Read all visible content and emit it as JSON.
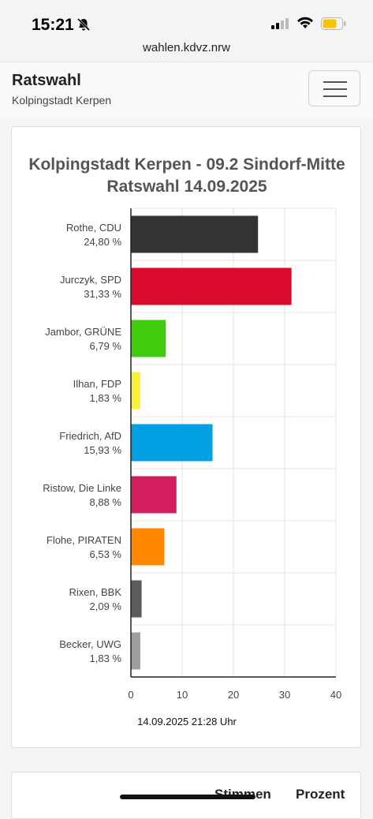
{
  "status": {
    "time": "15:21",
    "url": "wahlen.kdvz.nrw"
  },
  "nav": {
    "title": "Ratswahl",
    "subtitle": "Kolpingstadt Kerpen"
  },
  "table": {
    "col_stimmen": "Stimmen",
    "col_prozent": "Prozent"
  },
  "colors": {
    "accent_battery": "#f5c400"
  },
  "chart_data": {
    "type": "bar",
    "orientation": "horizontal",
    "title_line1": "Kolpingstadt Kerpen - 09.2 Sindorf-Mitte",
    "title_line2": "Ratswahl 14.09.2025",
    "timestamp": "14.09.2025 21:28 Uhr",
    "xlim": [
      0,
      40
    ],
    "xticks": [
      0,
      10,
      20,
      30,
      40
    ],
    "grid": true,
    "bars": [
      {
        "name": "Rothe, CDU",
        "label": "24,80 %",
        "value": 24.8,
        "color": "#333333"
      },
      {
        "name": "Jurczyk, SPD",
        "label": "31,33 %",
        "value": 31.33,
        "color": "#d90a2c"
      },
      {
        "name": "Jambor, GRÜNE",
        "label": "6,79 %",
        "value": 6.79,
        "color": "#3ecc0c"
      },
      {
        "name": "Ilhan, FDP",
        "label": "1,83 %",
        "value": 1.83,
        "color": "#fbef3c"
      },
      {
        "name": "Friedrich, AfD",
        "label": "15,93 %",
        "value": 15.93,
        "color": "#00a0e3"
      },
      {
        "name": "Ristow, Die Linke",
        "label": "8,88 %",
        "value": 8.88,
        "color": "#d21e5f"
      },
      {
        "name": "Flohe, PIRATEN",
        "label": "6,53 %",
        "value": 6.53,
        "color": "#ff8800"
      },
      {
        "name": "Rixen, BBK",
        "label": "2,09 %",
        "value": 2.09,
        "color": "#5c5c5c"
      },
      {
        "name": "Becker, UWG",
        "label": "1,83 %",
        "value": 1.83,
        "color": "#9e9e9e"
      }
    ]
  }
}
